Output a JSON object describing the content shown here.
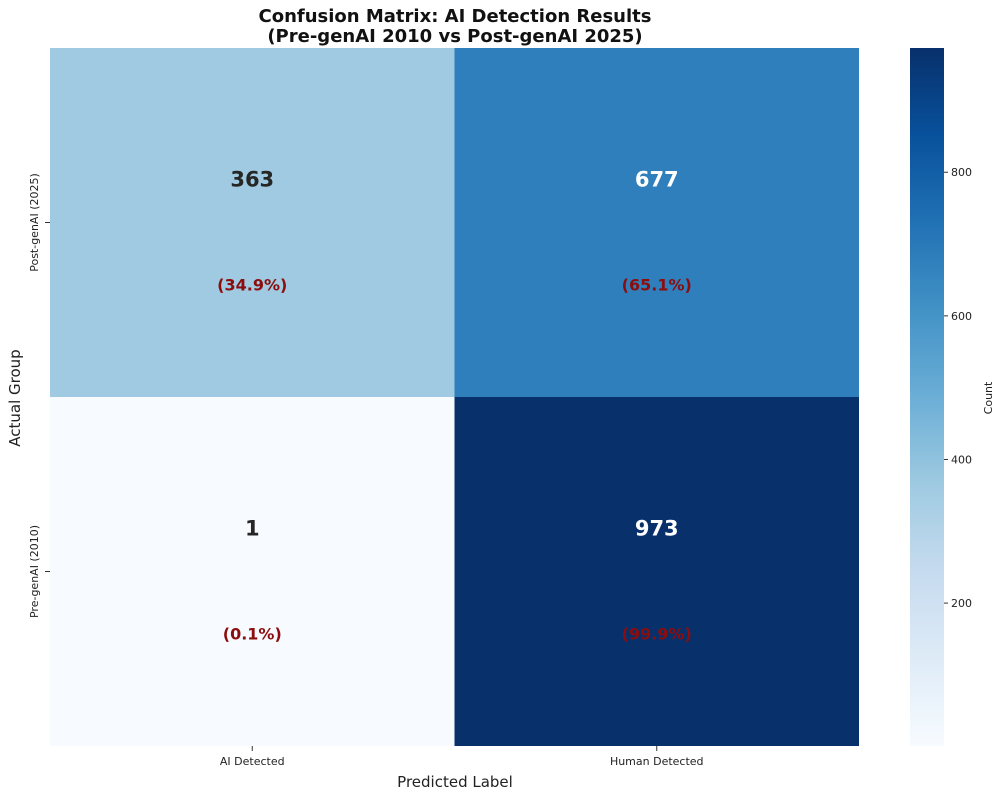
{
  "chart_data": {
    "type": "heatmap",
    "title_lines": [
      "Confusion Matrix: AI Detection Results",
      "(Pre-genAI 2010 vs Post-genAI 2025)"
    ],
    "xlabel": "Predicted Label",
    "ylabel": "Actual Group",
    "x_categories": [
      "AI Detected",
      "Human Detected"
    ],
    "y_categories": [
      "Post-genAI (2025)",
      "Pre-genAI (2010)"
    ],
    "values": [
      [
        363,
        677
      ],
      [
        1,
        973
      ]
    ],
    "percent_labels": [
      [
        "(34.9%)",
        "(65.1%)"
      ],
      [
        "(0.1%)",
        "(99.9%)"
      ]
    ],
    "colorbar": {
      "label": "Count",
      "min": 1,
      "max": 973,
      "ticks": [
        200,
        400,
        600,
        800
      ],
      "colormap": "Blues"
    },
    "grid": false
  }
}
